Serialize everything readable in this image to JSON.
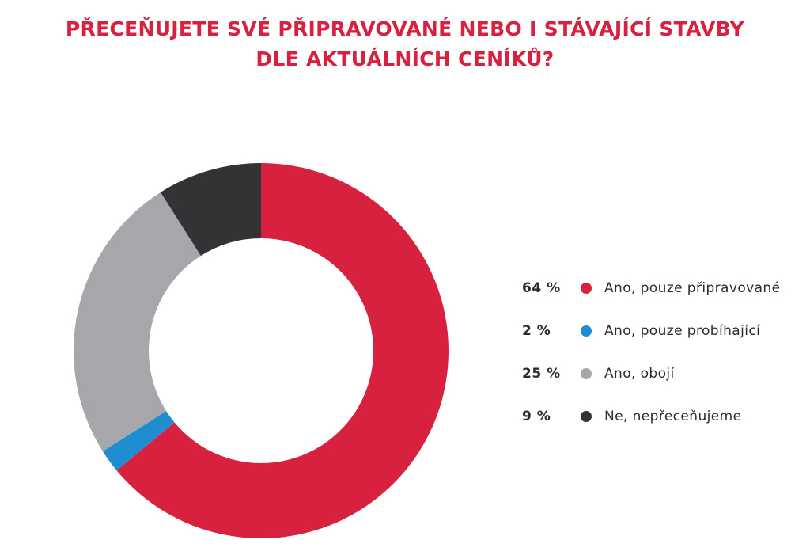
{
  "chart_data": {
    "type": "pie",
    "style": "donut",
    "title_lines": [
      "PŘECEŇUJETE SVÉ PŘIPRAVOVANÉ NEBO I STÁVAJÍCÍ STAVBY",
      "DLE AKTUÁLNÍCH CENÍKŮ?"
    ],
    "legend_position": "right",
    "slices": [
      {
        "value": 64,
        "value_label": "64 %",
        "label": "Ano, pouze připravované",
        "color": "#d8203f"
      },
      {
        "value": 2,
        "value_label": "2 %",
        "label": "Ano, pouze probíhající",
        "color": "#1e8ed1"
      },
      {
        "value": 25,
        "value_label": "25 %",
        "label": "Ano, obojí",
        "color": "#a7a7ab"
      },
      {
        "value": 9,
        "value_label": "9 %",
        "label": "Ne, nepřeceňujeme",
        "color": "#333335"
      }
    ]
  }
}
